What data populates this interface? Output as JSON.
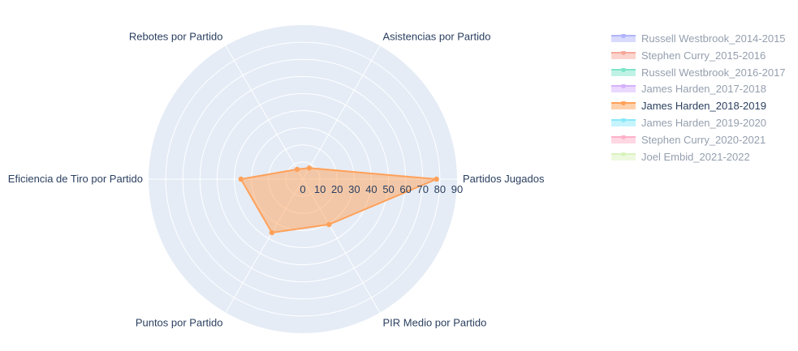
{
  "chart_data": {
    "type": "radar",
    "theta": [
      "Partidos Jugados",
      "Asistencias por Partido",
      "Rebotes por Partido",
      "Eficiencia de Tiro por Partido",
      "Puntos por Partido",
      "PIR Medio por Partido"
    ],
    "radial_range": [
      0,
      90
    ],
    "radial_ticks": [
      "0",
      "10",
      "20",
      "30",
      "40",
      "50",
      "60",
      "70",
      "80",
      "90"
    ],
    "series": [
      {
        "name": "Russell Westbrook_2014-2015",
        "color": "#636efa",
        "visible": "legendonly",
        "values": null
      },
      {
        "name": "Stephen Curry_2015-2016",
        "color": "#EF553B",
        "visible": "legendonly",
        "values": null
      },
      {
        "name": "Russell Westbrook_2016-2017",
        "color": "#00cc96",
        "visible": "legendonly",
        "values": null
      },
      {
        "name": "James Harden_2017-2018",
        "color": "#ab63fa",
        "visible": "legendonly",
        "values": null
      },
      {
        "name": "James Harden_2018-2019",
        "color": "#FFA15A",
        "visible": true,
        "values": [
          78,
          7.5,
          6.6,
          36.1,
          36.1,
          30.6
        ]
      },
      {
        "name": "James Harden_2019-2020",
        "color": "#19d3f3",
        "visible": "legendonly",
        "values": null
      },
      {
        "name": "Stephen Curry_2020-2021",
        "color": "#FF6692",
        "visible": "legendonly",
        "values": null
      },
      {
        "name": "Joel Embid_2021-2022",
        "color": "#B6E880",
        "visible": "legendonly",
        "values": null
      }
    ],
    "legend_position": "top-right"
  }
}
